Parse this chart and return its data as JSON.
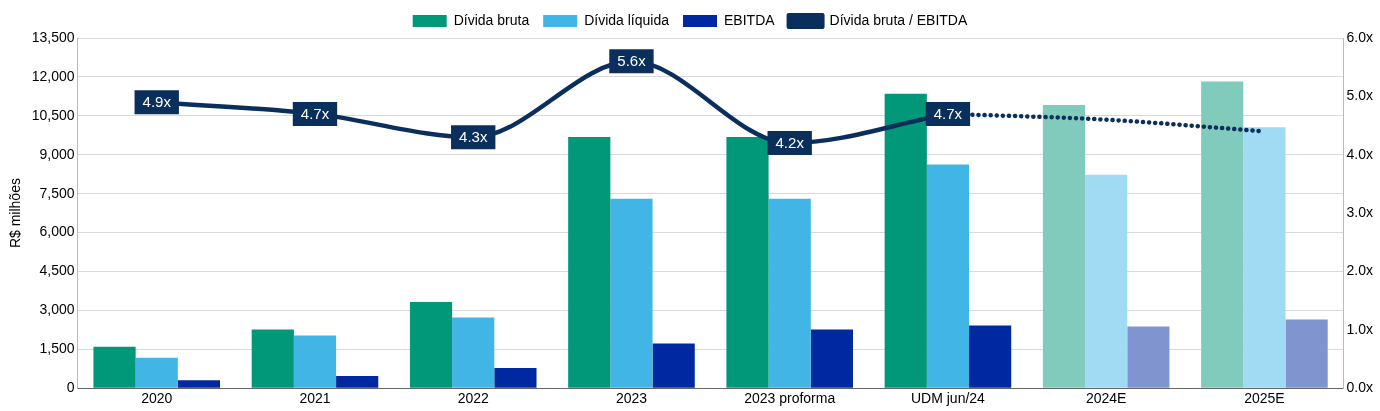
{
  "chart_data": {
    "type": "bar",
    "ylabel": "R$ milhões",
    "categories": [
      "2020",
      "2021",
      "2022",
      "2023",
      "2023 proforma",
      "UDM jun/24",
      "2024E",
      "2025E"
    ],
    "series": [
      {
        "name": "Dívida bruta",
        "color": "#009878",
        "colors": [
          "#009878",
          "#009878",
          "#009878",
          "#009878",
          "#009878",
          "#009878",
          "#80cbbb",
          "#80cbbb"
        ],
        "values": [
          1600,
          2260,
          3320,
          9680,
          9680,
          11350,
          10920,
          11820
        ]
      },
      {
        "name": "Dívida líquida",
        "color": "#41b6e6",
        "colors": [
          "#41b6e6",
          "#41b6e6",
          "#41b6e6",
          "#41b6e6",
          "#41b6e6",
          "#41b6e6",
          "#a0daf3",
          "#a0daf3"
        ],
        "values": [
          1170,
          2030,
          2730,
          7300,
          7300,
          8620,
          8230,
          10060
        ]
      },
      {
        "name": "EBITDA",
        "color": "#0028a0",
        "colors": [
          "#0028a0",
          "#0028a0",
          "#0028a0",
          "#0028a0",
          "#0028a0",
          "#0028a0",
          "#8094cf",
          "#8094cf"
        ],
        "values": [
          310,
          470,
          780,
          1720,
          2260,
          2420,
          2380,
          2650
        ]
      },
      {
        "name": "Dívida bruta / EBITDA",
        "type": "line",
        "axis": "y2",
        "color": "#0b2f5c",
        "line_style": "solid",
        "values": [
          4.9,
          4.7,
          4.3,
          5.6,
          4.2,
          4.7,
          null,
          null
        ],
        "value_labels": [
          "4.9x",
          "4.7x",
          "4.3x",
          "5.6x",
          "4.2x",
          "4.7x",
          null,
          null
        ]
      },
      {
        "type": "line",
        "axis": "y2",
        "color": "#0b2f5c",
        "line_style": "dotted",
        "values": [
          null,
          null,
          null,
          null,
          null,
          4.7,
          4.6,
          4.4
        ]
      }
    ],
    "ylim": [
      0,
      13500
    ],
    "yticks": [
      {
        "value": 0,
        "label": "0"
      },
      {
        "value": 1500,
        "label": "1,500"
      },
      {
        "value": 3000,
        "label": "3,000"
      },
      {
        "value": 4500,
        "label": "4,500"
      },
      {
        "value": 6000,
        "label": "6,000"
      },
      {
        "value": 7500,
        "label": "7,500"
      },
      {
        "value": 9000,
        "label": "9,000"
      },
      {
        "value": 10500,
        "label": "10,500"
      },
      {
        "value": 12000,
        "label": "12,000"
      },
      {
        "value": 13500,
        "label": "13,500"
      }
    ],
    "y2lim": [
      0,
      6
    ],
    "y2ticks": [
      {
        "value": 0,
        "label": "0.0x"
      },
      {
        "value": 1,
        "label": "1.0x"
      },
      {
        "value": 2,
        "label": "2.0x"
      },
      {
        "value": 3,
        "label": "3.0x"
      },
      {
        "value": 4,
        "label": "4.0x"
      },
      {
        "value": 5,
        "label": "5.0x"
      },
      {
        "value": 6,
        "label": "6.0x"
      }
    ],
    "grid": "y",
    "legend": "top",
    "marker": "none"
  }
}
